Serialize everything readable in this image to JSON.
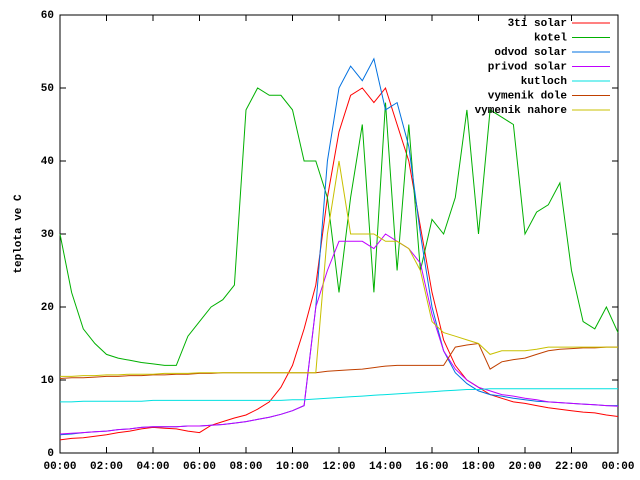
{
  "chart_data": {
    "type": "line",
    "ylabel": "teplota ve C",
    "x": [
      0,
      0.5,
      1,
      1.5,
      2,
      2.5,
      3,
      3.5,
      4,
      4.5,
      5,
      5.5,
      6,
      6.5,
      7,
      7.5,
      8,
      8.5,
      9,
      9.5,
      10,
      10.5,
      11,
      11.5,
      12,
      12.5,
      13,
      13.5,
      14,
      14.5,
      15,
      15.5,
      16,
      16.5,
      17,
      17.5,
      18,
      18.5,
      19,
      19.5,
      20,
      20.5,
      21,
      21.5,
      22,
      22.5,
      23,
      23.5,
      24
    ],
    "xlim": [
      0,
      24
    ],
    "xticks": [
      {
        "value": 0,
        "label": "00:00"
      },
      {
        "value": 2,
        "label": "02:00"
      },
      {
        "value": 4,
        "label": "04:00"
      },
      {
        "value": 6,
        "label": "06:00"
      },
      {
        "value": 8,
        "label": "08:00"
      },
      {
        "value": 10,
        "label": "10:00"
      },
      {
        "value": 12,
        "label": "12:00"
      },
      {
        "value": 14,
        "label": "14:00"
      },
      {
        "value": 16,
        "label": "16:00"
      },
      {
        "value": 18,
        "label": "18:00"
      },
      {
        "value": 20,
        "label": "20:00"
      },
      {
        "value": 22,
        "label": "22:00"
      },
      {
        "value": 24,
        "label": "00:00"
      }
    ],
    "ylim": [
      0,
      60
    ],
    "yticks": [
      0,
      10,
      20,
      30,
      40,
      50,
      60
    ],
    "legend": "top-right",
    "series": [
      {
        "name": "3ti solar",
        "color": "#ff0000",
        "values": [
          1.8,
          2,
          2.1,
          2.3,
          2.5,
          2.8,
          3,
          3.3,
          3.5,
          3.4,
          3.3,
          3,
          2.8,
          3.8,
          4.3,
          4.8,
          5.2,
          6,
          7,
          9,
          12,
          17,
          23,
          35,
          44,
          49,
          50,
          48,
          50,
          45,
          40,
          31,
          22,
          15.5,
          12,
          10,
          9,
          8,
          7.5,
          7,
          6.8,
          6.5,
          6.2,
          6,
          5.8,
          5.6,
          5.5,
          5.2,
          5
        ]
      },
      {
        "name": "kotel",
        "color": "#00b000",
        "values": [
          30,
          22,
          17,
          15,
          13.5,
          13,
          12.7,
          12.4,
          12.2,
          12,
          12,
          16,
          18,
          20,
          21,
          23,
          47,
          50,
          49,
          49,
          47,
          40,
          40,
          35,
          22,
          35,
          45,
          22,
          48,
          25,
          45,
          25,
          32,
          30,
          35,
          47,
          30,
          47,
          46,
          45,
          30,
          33,
          34,
          37,
          25,
          18,
          17,
          20,
          16.5
        ]
      },
      {
        "name": "odvod solar",
        "color": "#0070e0",
        "values": [
          2.5,
          2.6,
          2.8,
          2.9,
          3,
          3.2,
          3.3,
          3.5,
          3.6,
          3.6,
          3.6,
          3.7,
          3.7,
          3.8,
          3.9,
          4.1,
          4.3,
          4.6,
          4.9,
          5.3,
          5.8,
          6.5,
          20,
          40,
          50,
          53,
          51,
          54,
          47,
          48,
          42,
          30,
          20,
          14,
          11,
          9.5,
          8.5,
          8,
          7.8,
          7.5,
          7.3,
          7.1,
          7,
          6.9,
          6.8,
          6.7,
          6.6,
          6.5,
          6.5
        ]
      },
      {
        "name": "privod solar",
        "color": "#c000ff",
        "values": [
          2.6,
          2.7,
          2.8,
          2.9,
          3,
          3.2,
          3.3,
          3.5,
          3.6,
          3.6,
          3.6,
          3.7,
          3.7,
          3.8,
          3.9,
          4.1,
          4.3,
          4.6,
          4.9,
          5.3,
          5.8,
          6.5,
          20,
          25,
          29,
          29,
          29,
          28,
          30,
          29,
          28,
          26,
          19,
          14,
          11.5,
          10,
          9,
          8.5,
          8,
          7.8,
          7.5,
          7.3,
          7,
          6.9,
          6.8,
          6.7,
          6.6,
          6.5,
          6.4
        ]
      },
      {
        "name": "kutloch",
        "color": "#00e0e0",
        "values": [
          7,
          7,
          7.1,
          7.1,
          7.1,
          7.1,
          7.1,
          7.1,
          7.2,
          7.2,
          7.2,
          7.2,
          7.2,
          7.2,
          7.2,
          7.2,
          7.2,
          7.2,
          7.2,
          7.2,
          7.3,
          7.3,
          7.4,
          7.5,
          7.6,
          7.7,
          7.8,
          7.9,
          8,
          8.1,
          8.2,
          8.3,
          8.4,
          8.5,
          8.6,
          8.7,
          8.7,
          8.8,
          8.8,
          8.8,
          8.8,
          8.8,
          8.8,
          8.8,
          8.8,
          8.8,
          8.8,
          8.8,
          8.8
        ]
      },
      {
        "name": "vymenik dole",
        "color": "#c04000",
        "values": [
          10.2,
          10.3,
          10.3,
          10.4,
          10.5,
          10.5,
          10.6,
          10.6,
          10.7,
          10.7,
          10.8,
          10.8,
          10.9,
          10.9,
          11,
          11,
          11,
          11,
          11,
          11,
          11,
          11,
          11,
          11.2,
          11.3,
          11.4,
          11.5,
          11.7,
          11.9,
          12,
          12,
          12,
          12,
          12,
          14.5,
          14.8,
          15,
          11.5,
          12.5,
          12.8,
          13,
          13.5,
          14,
          14.2,
          14.3,
          14.4,
          14.4,
          14.5,
          14.5
        ]
      },
      {
        "name": "vymenik nahore",
        "color": "#c8c000",
        "values": [
          10.5,
          10.5,
          10.6,
          10.6,
          10.7,
          10.7,
          10.8,
          10.8,
          10.8,
          10.9,
          10.9,
          10.9,
          11,
          11,
          11,
          11,
          11,
          11,
          11,
          11,
          11,
          11,
          11,
          30,
          40,
          30,
          30,
          30,
          29,
          29,
          28,
          25,
          18,
          16.5,
          16,
          15.5,
          15,
          13.5,
          14,
          14,
          14,
          14.2,
          14.5,
          14.5,
          14.5,
          14.5,
          14.5,
          14.5,
          14.5
        ]
      }
    ]
  }
}
